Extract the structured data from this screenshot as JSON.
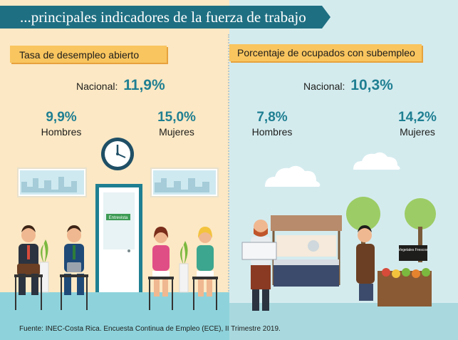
{
  "title": "...principales indicadores de la fuerza de trabajo",
  "left": {
    "heading": "Tasa de desempleo abierto",
    "national_label": "Nacional:",
    "national_value": "11,9%",
    "men_value": "9,9%",
    "men_label": "Hombres",
    "women_value": "15,0%",
    "women_label": "Mujeres",
    "door_sign": "Entrevista"
  },
  "right": {
    "heading": "Porcentaje de ocupados con subempleo",
    "national_label": "Nacional:",
    "national_value": "10,3%",
    "men_value": "7,8%",
    "men_label": "Hombres",
    "women_value": "14,2%",
    "women_label": "Mujeres",
    "stall_sign": "Vegetales Frescos"
  },
  "footer": "Fuente: INEC-Costa Rica. Encuesta Continua de Empleo (ECE), II Trimestre 2019.",
  "colors": {
    "teal": "#1f6f82",
    "accent_text": "#1f7f92",
    "ribbon": "#f9c55f",
    "left_bg": "#fce8c4",
    "right_bg": "#d4ebee"
  }
}
